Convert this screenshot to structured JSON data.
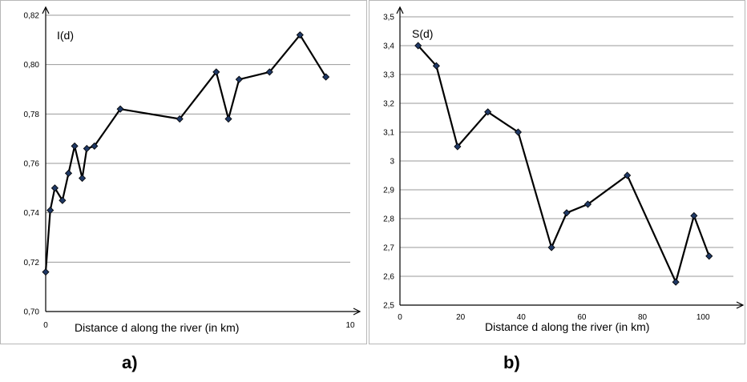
{
  "sub_labels": {
    "a": "a)",
    "b": "b)"
  },
  "colors": {
    "line": "#000000",
    "marker_fill": "#1f3864",
    "marker_stroke": "#000000",
    "grid": "#9a9a9a",
    "axis": "#000000"
  },
  "chart_data": [
    {
      "type": "line",
      "ylabel": "I(d)",
      "xlabel": "Distance d along the river (in km)",
      "xlim": [
        0,
        10
      ],
      "ylim": [
        0.7,
        0.82
      ],
      "x_ticks": [
        0,
        10
      ],
      "x_tick_labels": [
        "0",
        "10"
      ],
      "y_ticks": [
        0.7,
        0.72,
        0.74,
        0.76,
        0.78,
        0.8,
        0.82
      ],
      "y_tick_labels": [
        "0,70",
        "0,72",
        "0,74",
        "0,76",
        "0,78",
        "0,80",
        "0,82"
      ],
      "grid": "horizontal",
      "series": [
        {
          "x": [
            0.0,
            0.15,
            0.3,
            0.55,
            0.75,
            0.95,
            1.2,
            1.35,
            1.6,
            2.45,
            4.4,
            5.6,
            6.0,
            6.35,
            7.35,
            8.35,
            9.2
          ],
          "y": [
            0.716,
            0.741,
            0.75,
            0.745,
            0.756,
            0.767,
            0.754,
            0.766,
            0.767,
            0.782,
            0.778,
            0.797,
            0.778,
            0.794,
            0.797,
            0.812,
            0.795
          ]
        }
      ]
    },
    {
      "type": "line",
      "ylabel": "S(d)",
      "xlabel": "Distance d along the river (in km)",
      "xlim": [
        0,
        110
      ],
      "ylim": [
        2.5,
        3.5
      ],
      "x_ticks": [
        0,
        20,
        40,
        60,
        80,
        100
      ],
      "x_tick_labels": [
        "0",
        "20",
        "40",
        "60",
        "80",
        "100"
      ],
      "y_ticks": [
        2.5,
        2.6,
        2.7,
        2.8,
        2.9,
        3.0,
        3.1,
        3.2,
        3.3,
        3.4,
        3.5
      ],
      "y_tick_labels": [
        "2,5",
        "2,6",
        "2,7",
        "2,8",
        "2,9",
        "3",
        "3,1",
        "3,2",
        "3,3",
        "3,4",
        "3,5"
      ],
      "grid": "horizontal",
      "series": [
        {
          "x": [
            6,
            12,
            19,
            29,
            39,
            50,
            55,
            62,
            75,
            91,
            97,
            102
          ],
          "y": [
            3.4,
            3.33,
            3.05,
            3.17,
            3.1,
            2.7,
            2.82,
            2.85,
            2.95,
            2.58,
            2.81,
            2.67
          ]
        }
      ]
    }
  ]
}
